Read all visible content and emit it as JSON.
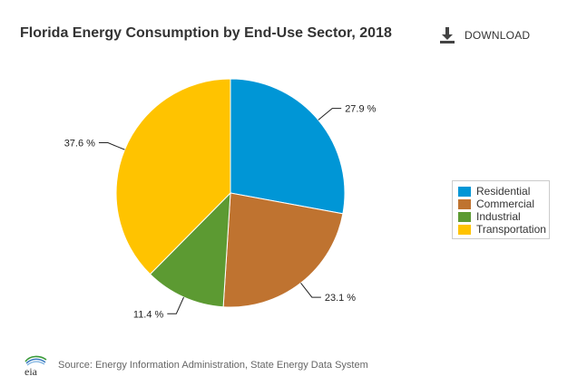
{
  "header": {
    "download_label": "DOWNLOAD"
  },
  "footer": {
    "source_text": "Source: Energy Information Administration, State Energy Data System",
    "logo_text": "eia"
  },
  "icons": {
    "download": "download-icon",
    "logo": "eia-logo"
  },
  "chart_data": {
    "type": "pie",
    "title": "Florida Energy Consumption by End-Use Sector, 2018",
    "categories": [
      "Residential",
      "Commercial",
      "Industrial",
      "Transportation"
    ],
    "values": [
      27.9,
      23.1,
      11.4,
      37.6
    ],
    "labels": [
      "27.9 %",
      "23.1 %",
      "11.4 %",
      "37.6 %"
    ],
    "colors": [
      "#0096d6",
      "#bf7330",
      "#5c9a32",
      "#ffc300"
    ],
    "start_angle_deg": 0,
    "direction": "clockwise",
    "legend": "right"
  }
}
